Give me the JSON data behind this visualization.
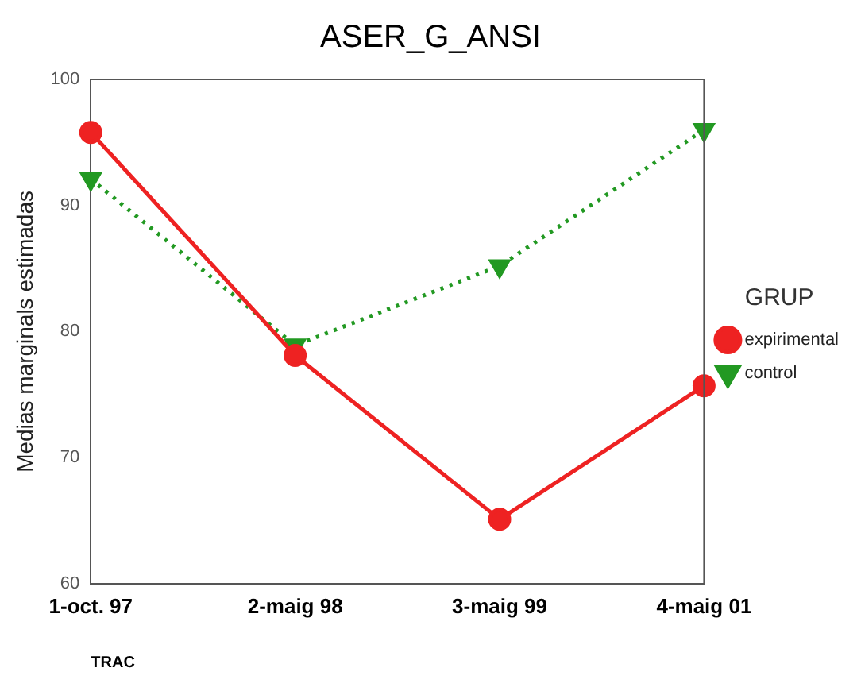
{
  "chart_data": {
    "type": "line",
    "title": "ASER_G_ANSI",
    "xlabel": "TRAC",
    "ylabel": "Medias marginals estimadas",
    "legend_title": "GRUP",
    "categories": [
      "1-oct. 97",
      "2-maig 98",
      "3-maig 99",
      "4-maig 01"
    ],
    "series": [
      {
        "name": "expirimental",
        "color": "#ee2222",
        "values": [
          95.8,
          78.1,
          65.1,
          75.7
        ],
        "marker": "circle",
        "line_style": "solid"
      },
      {
        "name": "control",
        "color": "#229922",
        "values": [
          92.1,
          78.9,
          85.2,
          96.0
        ],
        "marker": "triangle",
        "line_style": "dotted"
      }
    ],
    "ylim": [
      60,
      100
    ],
    "yticks": [
      60,
      70,
      80,
      90,
      100
    ],
    "grid": false,
    "legend": "right"
  }
}
